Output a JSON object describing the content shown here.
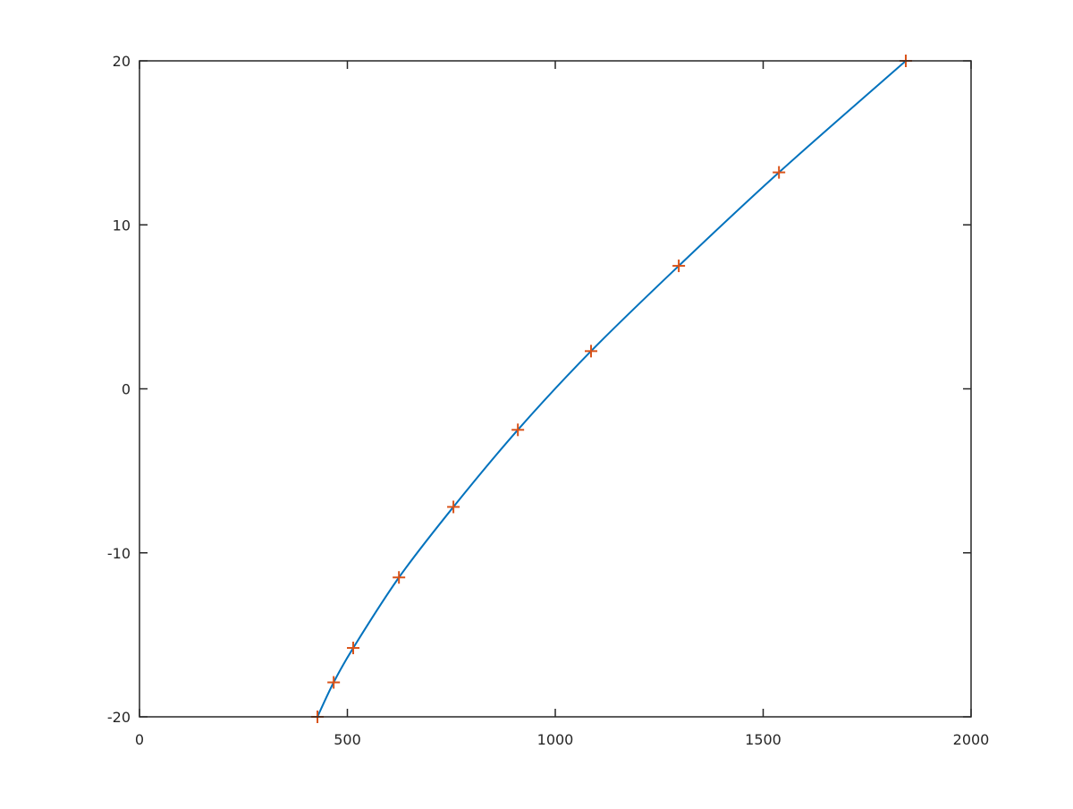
{
  "chart_data": {
    "type": "line",
    "title": "",
    "xlabel": "",
    "ylabel": "",
    "xlim": [
      0,
      2000
    ],
    "ylim": [
      -20,
      20
    ],
    "xticks": [
      0,
      500,
      1000,
      1500,
      2000
    ],
    "yticks": [
      -20,
      -10,
      0,
      10,
      20
    ],
    "xtick_labels": [
      "0",
      "500",
      "1000",
      "1500",
      "2000"
    ],
    "ytick_labels": [
      "-20",
      "-10",
      "0",
      "10",
      "20"
    ],
    "grid": false,
    "series": [
      {
        "style": "line",
        "color": "#0072BD",
        "x": [
          428,
          467,
          514,
          624,
          755,
          910,
          1086,
          1297,
          1538,
          1843
        ],
        "y": [
          -20,
          -17.9,
          -15.8,
          -11.5,
          -7.2,
          -2.5,
          2.3,
          7.5,
          13.2,
          20
        ]
      },
      {
        "style": "markers",
        "marker": "+",
        "color": "#D95319",
        "x": [
          428,
          467,
          514,
          624,
          755,
          910,
          1086,
          1297,
          1538,
          1843
        ],
        "y": [
          -20,
          -17.9,
          -15.8,
          -11.5,
          -7.2,
          -2.5,
          2.3,
          7.5,
          13.2,
          20
        ]
      }
    ]
  }
}
